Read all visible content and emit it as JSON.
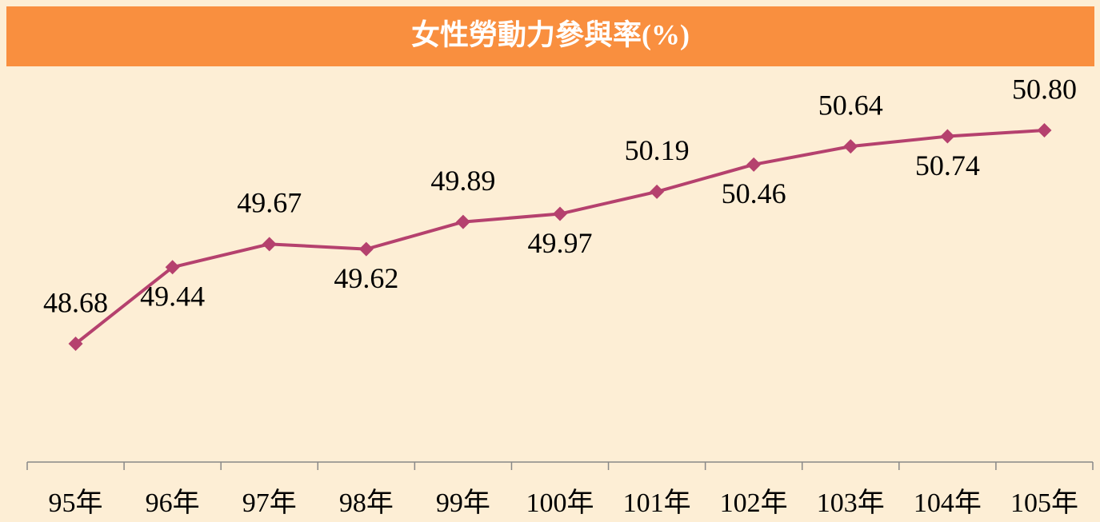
{
  "chart_data": {
    "type": "line",
    "title": "女性勞動力參與率(%)",
    "categories": [
      "95年",
      "96年",
      "97年",
      "98年",
      "99年",
      "100年",
      "101年",
      "102年",
      "103年",
      "104年",
      "105年"
    ],
    "series": [
      {
        "name": "女性勞動力參與率",
        "color": "#b5416e",
        "values": [
          48.68,
          49.44,
          49.67,
          49.62,
          49.89,
          49.97,
          50.19,
          50.46,
          50.64,
          50.74,
          50.8
        ],
        "value_labels": [
          "48.68",
          "49.44",
          "49.67",
          "49.62",
          "49.89",
          "49.97",
          "50.19",
          "50.46",
          "50.64",
          "50.74",
          "50.80"
        ]
      }
    ],
    "title_color": "#f98f3f",
    "background": "#fdeed5"
  }
}
